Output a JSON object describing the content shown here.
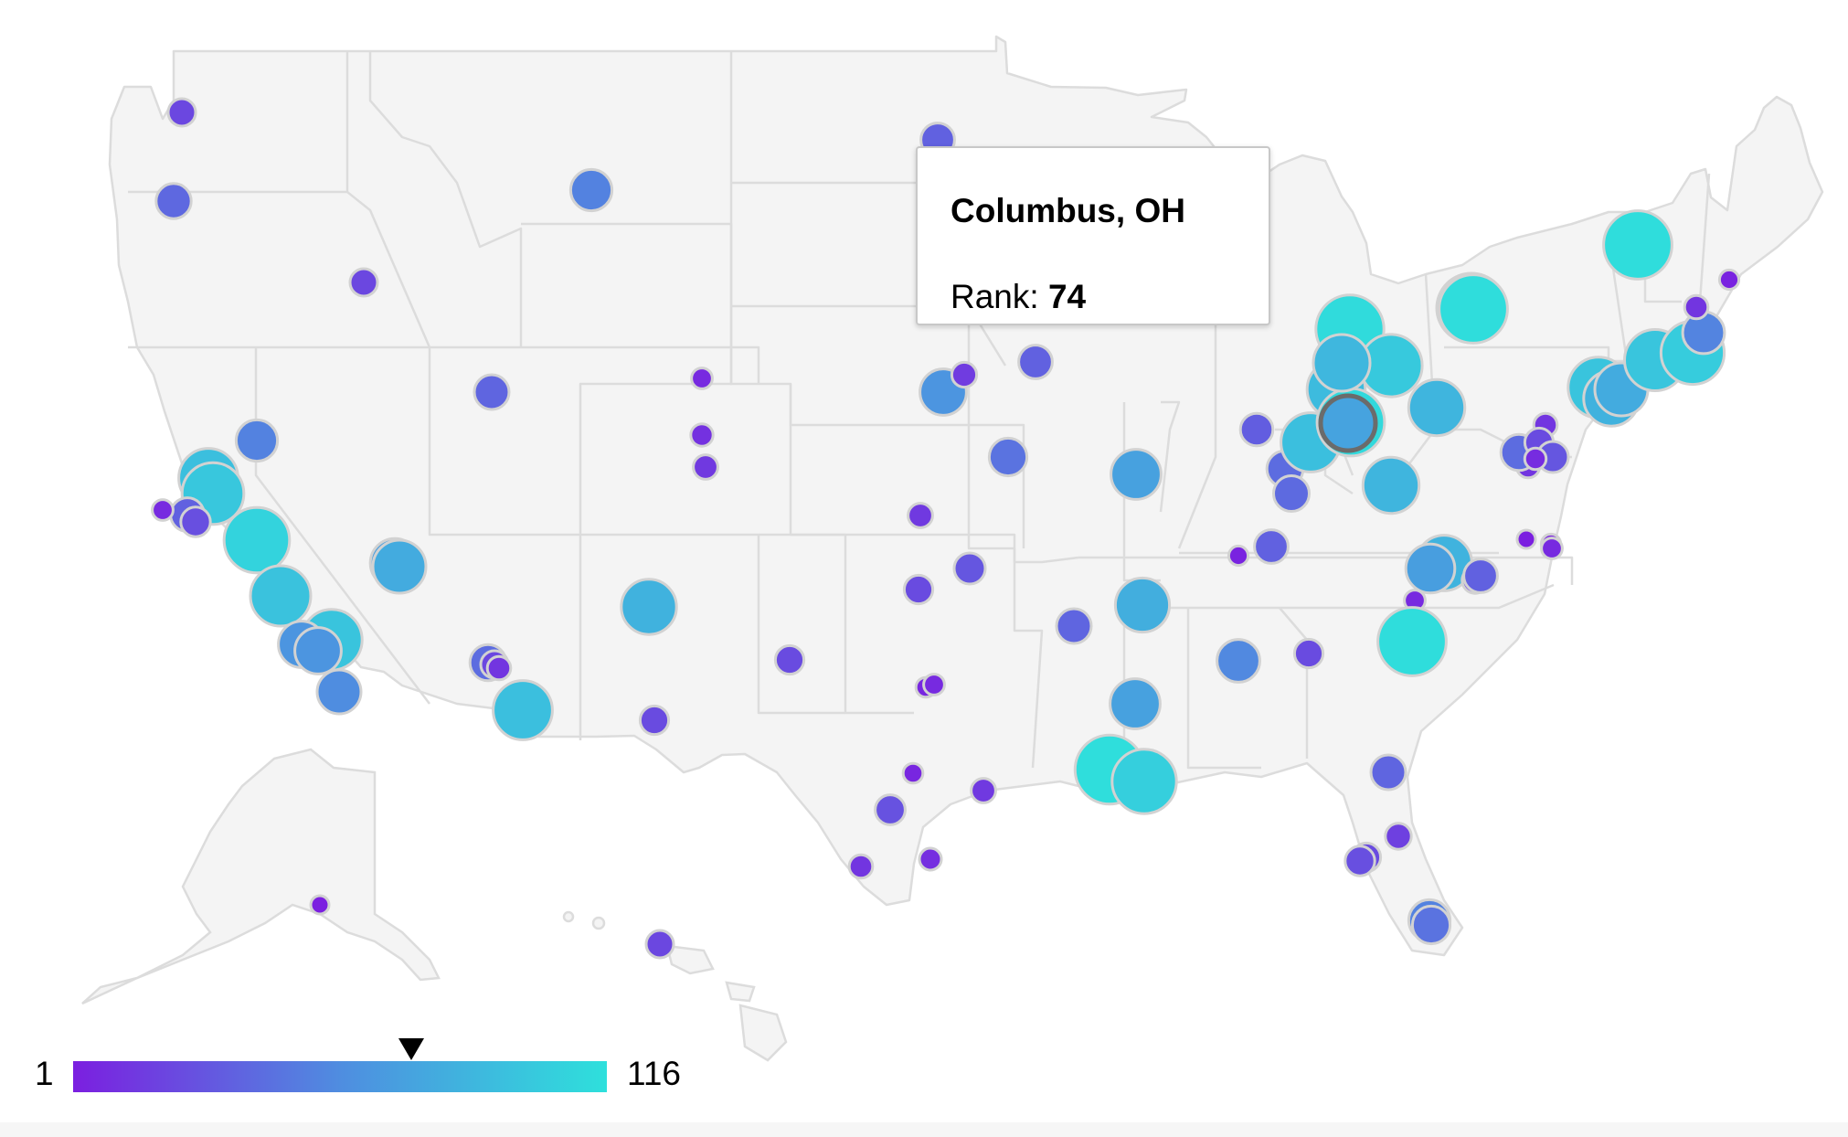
{
  "legend": {
    "min_label": "1",
    "max_label": "116",
    "color_low": "#7b1fe0",
    "color_mid": "#4f8de0",
    "color_high": "#2ee0dc",
    "highlight_value": 74
  },
  "tooltip": {
    "title": "Columbus, OH",
    "rank_label": "Rank:",
    "rank_value": "74"
  },
  "colors": {
    "land": "#f4f4f4",
    "border": "#dcdcdc",
    "bubble_stroke": "#d2d2d2"
  },
  "chart_data": {
    "type": "bubble-map",
    "metric": "Rank",
    "range": [
      1,
      116
    ],
    "highlighted": {
      "city": "Columbus, OH",
      "rank": 74
    }
  }
}
